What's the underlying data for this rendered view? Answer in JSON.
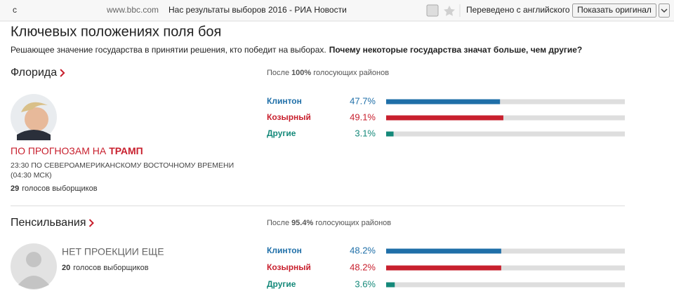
{
  "browser": {
    "domain": "www.bbc.com",
    "page_title": "Нас результаты выборов 2016 - РИА Новости",
    "translated_note": "Переведено с английского",
    "show_original_button": "Показать оригинал"
  },
  "header": {
    "title": "Ключевых положениях поля боя",
    "subtitle": "Решающее значение государства в принятии решения, кто победит на выборах.",
    "subtitle_link": "Почему некоторые государства значат больше, чем другие?"
  },
  "states": [
    {
      "name": "Флорида",
      "reporting_prefix": "После",
      "reporting_value": "100%",
      "reporting_suffix": "голосующих районов",
      "projection_prefix": "ПО ПРОГНОЗАМ НА",
      "projection_winner": "ТРАМП",
      "time_line1": "23:30 ПО СЕВЕРОАМЕРИКАНСКОМУ ВОСТОЧНОМУ ВРЕМЕНИ",
      "time_line2": "(04:30 МСК)",
      "electoral_votes": 29,
      "electoral_label": "голосов выборщиков",
      "candidates": [
        {
          "name": "Клинтон",
          "color": "#1f6fa8",
          "value": 47.7,
          "value_label": "47.7%"
        },
        {
          "name": "Козырный",
          "color": "#c8202e",
          "value": 49.1,
          "value_label": "49.1%"
        },
        {
          "name": "Другие",
          "color": "#15897a",
          "value": 3.1,
          "value_label": "3.1%"
        }
      ]
    },
    {
      "name": "Пенсильвания",
      "reporting_prefix": "После",
      "reporting_value": "95.4%",
      "reporting_suffix": "голосующих районов",
      "projection": "НЕТ ПРОЕКЦИИ ЕЩЕ",
      "electoral_votes": 20,
      "electoral_label": "голосов выборщиков",
      "candidates": [
        {
          "name": "Клинтон",
          "color": "#1f6fa8",
          "value": 48.2,
          "value_label": "48.2%"
        },
        {
          "name": "Козырный",
          "color": "#c8202e",
          "value": 48.2,
          "value_label": "48.2%"
        },
        {
          "name": "Другие",
          "color": "#15897a",
          "value": 3.6,
          "value_label": "3.6%"
        }
      ]
    }
  ]
}
